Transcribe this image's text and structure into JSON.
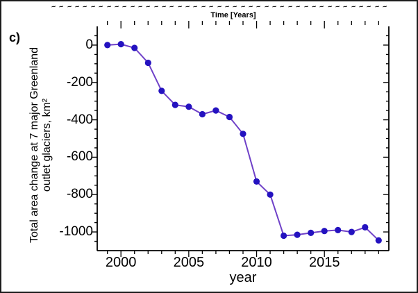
{
  "panel_label": "c)",
  "top_axis": {
    "label": "Time [Years]",
    "truncated_label_glyph": "~",
    "truncated_label_count": 43
  },
  "chart_data": {
    "type": "line",
    "title": "",
    "xlabel": "year",
    "ylabel_line1": "Total area change at 7 major Greenland",
    "ylabel_line2": "outlet glaciers, km²",
    "x": [
      1999,
      2000,
      2001,
      2002,
      2003,
      2004,
      2005,
      2006,
      2007,
      2008,
      2009,
      2010,
      2011,
      2012,
      2013,
      2014,
      2015,
      2016,
      2017,
      2018,
      2019
    ],
    "values": [
      0,
      5,
      -15,
      -95,
      -245,
      -320,
      -330,
      -370,
      -350,
      -385,
      -475,
      -730,
      -800,
      -1020,
      -1015,
      -1005,
      -995,
      -990,
      -1000,
      -975,
      -1045
    ],
    "xlim": [
      1998.25,
      2019.75
    ],
    "ylim": [
      -1100,
      100
    ],
    "x_major_ticks": [
      {
        "label": "2000",
        "value": 2000
      },
      {
        "label": "2005",
        "value": 2005
      },
      {
        "label": "2010",
        "value": 2010
      },
      {
        "label": "2015",
        "value": 2015
      }
    ],
    "x_minor_step_years": 1,
    "y_major_ticks": [
      {
        "label": "0",
        "value": 0
      },
      {
        "label": "-200",
        "value": -200
      },
      {
        "label": "-400",
        "value": -400
      },
      {
        "label": "-600",
        "value": -600
      },
      {
        "label": "-800",
        "value": -800
      },
      {
        "label": "-1000",
        "value": -1000
      }
    ],
    "y_minor_step": 50,
    "grid": false,
    "legend": null,
    "line_color": "#6f41c8",
    "marker_color": "#2412c0",
    "axis_color": "#000000"
  }
}
